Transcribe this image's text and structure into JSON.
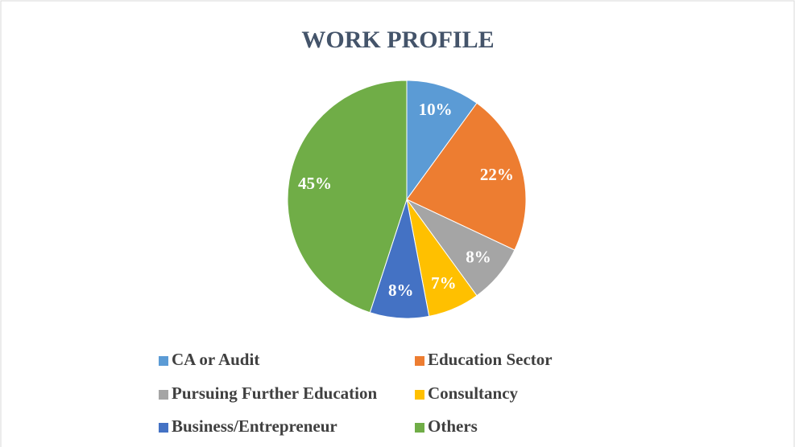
{
  "chart_data": {
    "type": "pie",
    "title": "WORK PROFILE",
    "categories": [
      "CA or Audit",
      "Education Sector",
      "Pursuing Further Education",
      "Consultancy",
      "Business/Entrepreneur",
      "Others"
    ],
    "values": [
      10,
      22,
      8,
      7,
      8,
      45
    ],
    "value_labels": [
      "10%",
      "22%",
      "8%",
      "7%",
      "8%",
      "45%"
    ],
    "colors": [
      "#5b9bd5",
      "#ed7d31",
      "#a5a5a5",
      "#ffc000",
      "#4472c4",
      "#70ad47"
    ],
    "legend": "bottom"
  }
}
